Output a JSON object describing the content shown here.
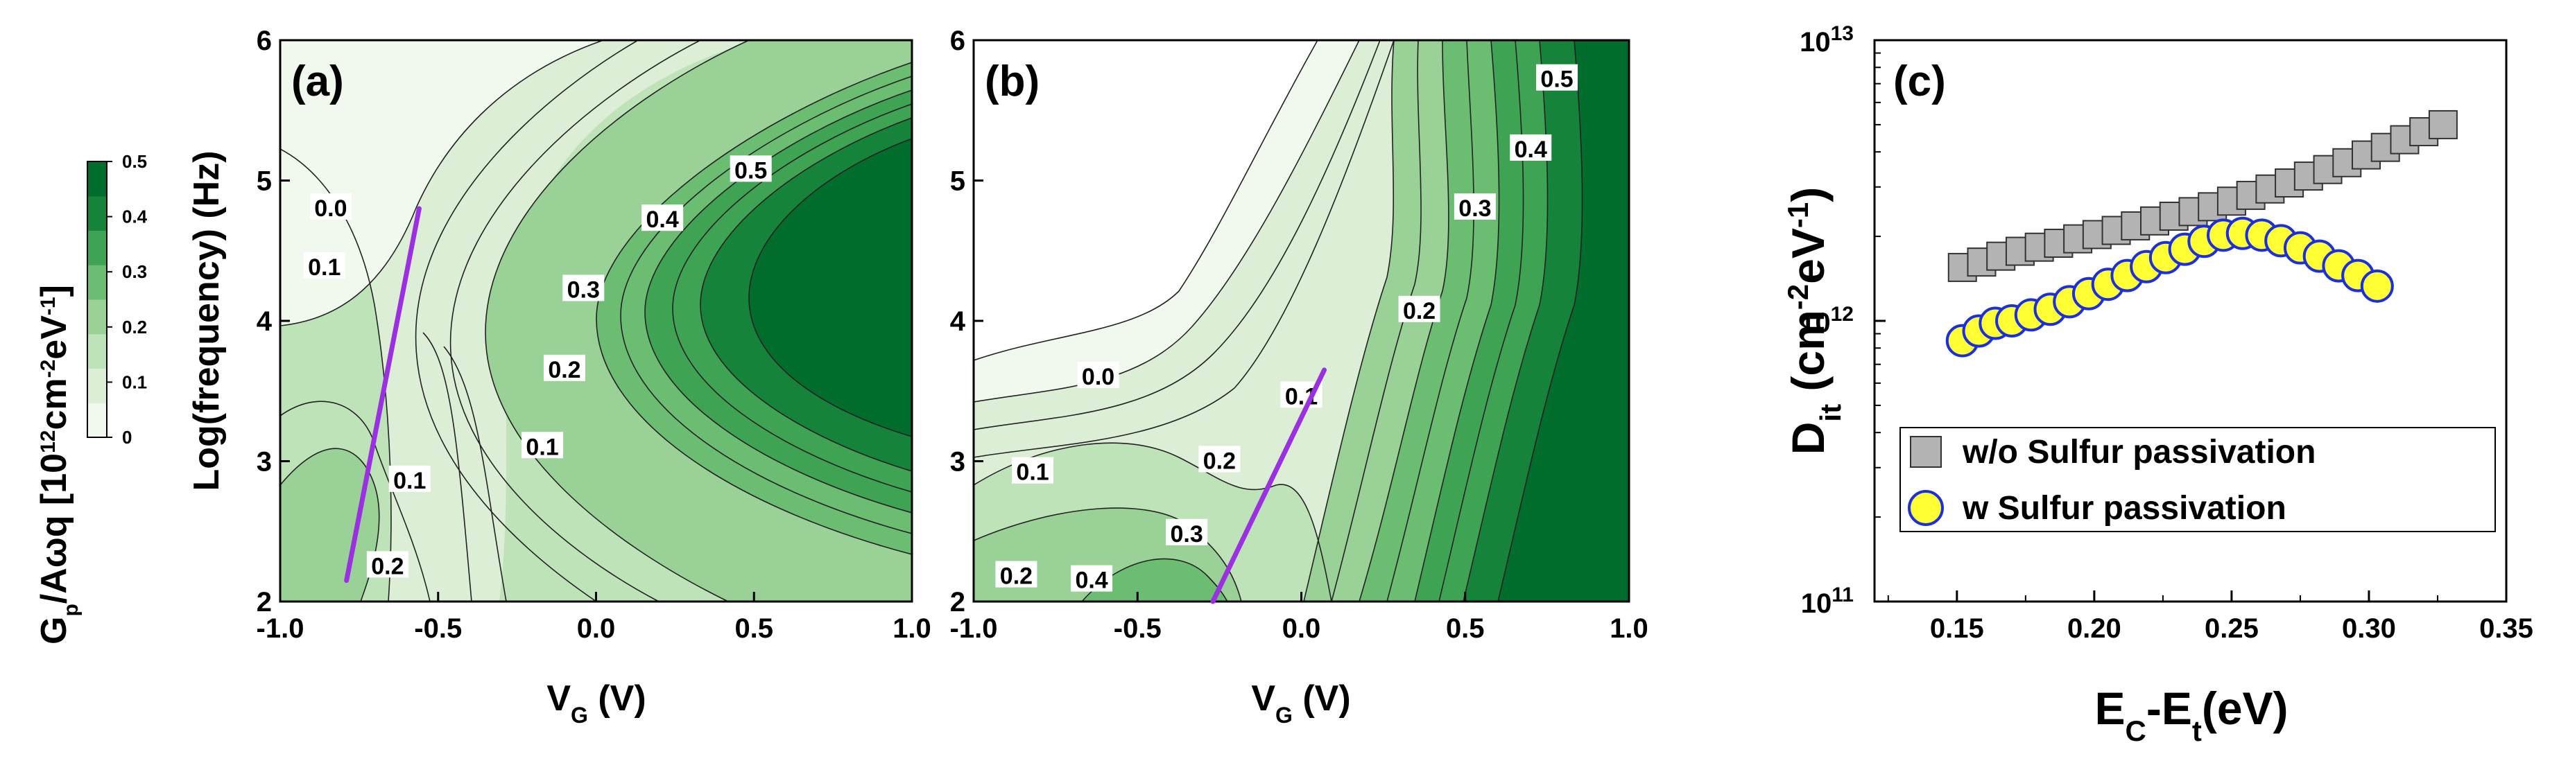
{
  "colors": {
    "c0": "#f1f9ef",
    "c1": "#dcefd6",
    "c2": "#bfe3b9",
    "c3": "#99d197",
    "c4": "#6bbd72",
    "c5": "#3ea453",
    "c6": "#15843a",
    "c7": "#006d2c",
    "trend_line": "#9b30e0",
    "gray_marker": "#b3b3b3",
    "yellow_marker": "#ffff33",
    "blue_edge": "#1c2fe0"
  },
  "colorbar": {
    "label_main": "G",
    "label_sub": "p",
    "label_rest": "/Aωq [10",
    "label_sup1": "12",
    "label_mid": "cm",
    "label_sup2": "-2",
    "label_mid2": "eV",
    "label_sup3": "-1",
    "label_end": "]",
    "ticks": [
      "0",
      "0.1",
      "0.2",
      "0.3",
      "0.4",
      "0.5"
    ]
  },
  "chart_data": [
    {
      "panel": "(a)",
      "type": "contour",
      "xlabel_main": "V",
      "xlabel_sub": "G",
      "xlabel_rest": " (V)",
      "ylabel": "Log(frequency) (Hz)",
      "xlim": [
        -1.0,
        1.0
      ],
      "ylim": [
        2,
        6
      ],
      "xticks": [
        "-1.0",
        "-0.5",
        "0.0",
        "0.5",
        "1.0"
      ],
      "yticks": [
        "2",
        "3",
        "4",
        "5",
        "6"
      ],
      "contour_labels": [
        {
          "text": "0.0",
          "x": -0.84,
          "y": 4.8
        },
        {
          "text": "0.1",
          "x": -0.86,
          "y": 4.38
        },
        {
          "text": "0.5",
          "x": 0.49,
          "y": 5.07
        },
        {
          "text": "0.4",
          "x": 0.21,
          "y": 4.72
        },
        {
          "text": "0.3",
          "x": -0.04,
          "y": 4.22
        },
        {
          "text": "0.2",
          "x": -0.1,
          "y": 3.65
        },
        {
          "text": "0.1",
          "x": -0.17,
          "y": 3.1
        },
        {
          "text": "0.1",
          "x": -0.59,
          "y": 2.86
        },
        {
          "text": "0.2",
          "x": -0.66,
          "y": 2.25
        }
      ],
      "trend_line": [
        {
          "x": -0.79,
          "y": 2.15
        },
        {
          "x": -0.56,
          "y": 4.8
        }
      ]
    },
    {
      "panel": "(b)",
      "type": "contour",
      "xlabel_main": "V",
      "xlabel_sub": "G",
      "xlabel_rest": " (V)",
      "xlim": [
        -1.0,
        1.0
      ],
      "ylim": [
        2,
        6
      ],
      "xticks": [
        "-1.0",
        "-0.5",
        "0.0",
        "0.5",
        "1.0"
      ],
      "yticks": [
        "2",
        "3",
        "4",
        "5",
        "6"
      ],
      "contour_labels": [
        {
          "text": "0.5",
          "x": 0.78,
          "y": 5.72
        },
        {
          "text": "0.4",
          "x": 0.7,
          "y": 5.22
        },
        {
          "text": "0.3",
          "x": 0.53,
          "y": 4.8
        },
        {
          "text": "0.2",
          "x": 0.36,
          "y": 4.07
        },
        {
          "text": "0.1",
          "x": 0.0,
          "y": 3.46
        },
        {
          "text": "0.0",
          "x": -0.62,
          "y": 3.6
        },
        {
          "text": "0.2",
          "x": -0.25,
          "y": 3.0
        },
        {
          "text": "0.1",
          "x": -0.82,
          "y": 2.92
        },
        {
          "text": "0.3",
          "x": -0.35,
          "y": 2.48
        },
        {
          "text": "0.2",
          "x": -0.87,
          "y": 2.18
        },
        {
          "text": "0.4",
          "x": -0.64,
          "y": 2.15
        }
      ],
      "trend_line": [
        {
          "x": -0.27,
          "y": 2.0
        },
        {
          "x": 0.07,
          "y": 3.65
        }
      ]
    },
    {
      "panel": "(c)",
      "type": "scatter",
      "xlabel_main": "E",
      "xlabel_sub1": "C",
      "xlabel_mid": "-E",
      "xlabel_sub2": "t",
      "xlabel_rest": "(eV)",
      "ylabel_main": "D",
      "ylabel_sub": "it",
      "ylabel_rest1": " (cm",
      "ylabel_sup1": "-2",
      "ylabel_rest2": "eV",
      "ylabel_sup2": "-1",
      "ylabel_rest3": ")",
      "xlim": [
        0.12,
        0.35
      ],
      "ylim_log": [
        11,
        13
      ],
      "xticks": [
        "0.15",
        "0.20",
        "0.25",
        "0.30",
        "0.35"
      ],
      "yticks": [
        {
          "base": "10",
          "exp": "11"
        },
        {
          "base": "10",
          "exp": "12"
        },
        {
          "base": "10",
          "exp": "13"
        }
      ],
      "legend": {
        "position": "lower-right-inside"
      },
      "series": [
        {
          "name": "w/o Sulfur passivation",
          "marker": "square",
          "x": [
            0.152,
            0.159,
            0.166,
            0.173,
            0.18,
            0.187,
            0.194,
            0.201,
            0.208,
            0.215,
            0.222,
            0.229,
            0.236,
            0.243,
            0.25,
            0.257,
            0.264,
            0.271,
            0.278,
            0.285,
            0.292,
            0.299,
            0.306,
            0.313,
            0.32,
            0.327
          ],
          "y": [
            1550000000000.0,
            1620000000000.0,
            1700000000000.0,
            1770000000000.0,
            1830000000000.0,
            1890000000000.0,
            1960000000000.0,
            2030000000000.0,
            2100000000000.0,
            2180000000000.0,
            2270000000000.0,
            2360000000000.0,
            2450000000000.0,
            2550000000000.0,
            2670000000000.0,
            2800000000000.0,
            2950000000000.0,
            3100000000000.0,
            3280000000000.0,
            3460000000000.0,
            3660000000000.0,
            3900000000000.0,
            4150000000000.0,
            4420000000000.0,
            4720000000000.0,
            5000000000000.0
          ]
        },
        {
          "name": "w Sulfur passivation",
          "marker": "circle",
          "x": [
            0.152,
            0.158,
            0.164,
            0.17,
            0.177,
            0.184,
            0.191,
            0.198,
            0.205,
            0.212,
            0.219,
            0.226,
            0.233,
            0.24,
            0.247,
            0.254,
            0.261,
            0.268,
            0.275,
            0.282,
            0.289,
            0.296,
            0.303
          ],
          "y": [
            850000000000.0,
            920000000000.0,
            980000000000.0,
            1000000000000.0,
            1050000000000.0,
            1100000000000.0,
            1170000000000.0,
            1250000000000.0,
            1350000000000.0,
            1450000000000.0,
            1560000000000.0,
            1680000000000.0,
            1800000000000.0,
            1920000000000.0,
            2020000000000.0,
            2050000000000.0,
            2020000000000.0,
            1930000000000.0,
            1820000000000.0,
            1700000000000.0,
            1570000000000.0,
            1450000000000.0,
            1330000000000.0
          ]
        }
      ]
    }
  ]
}
